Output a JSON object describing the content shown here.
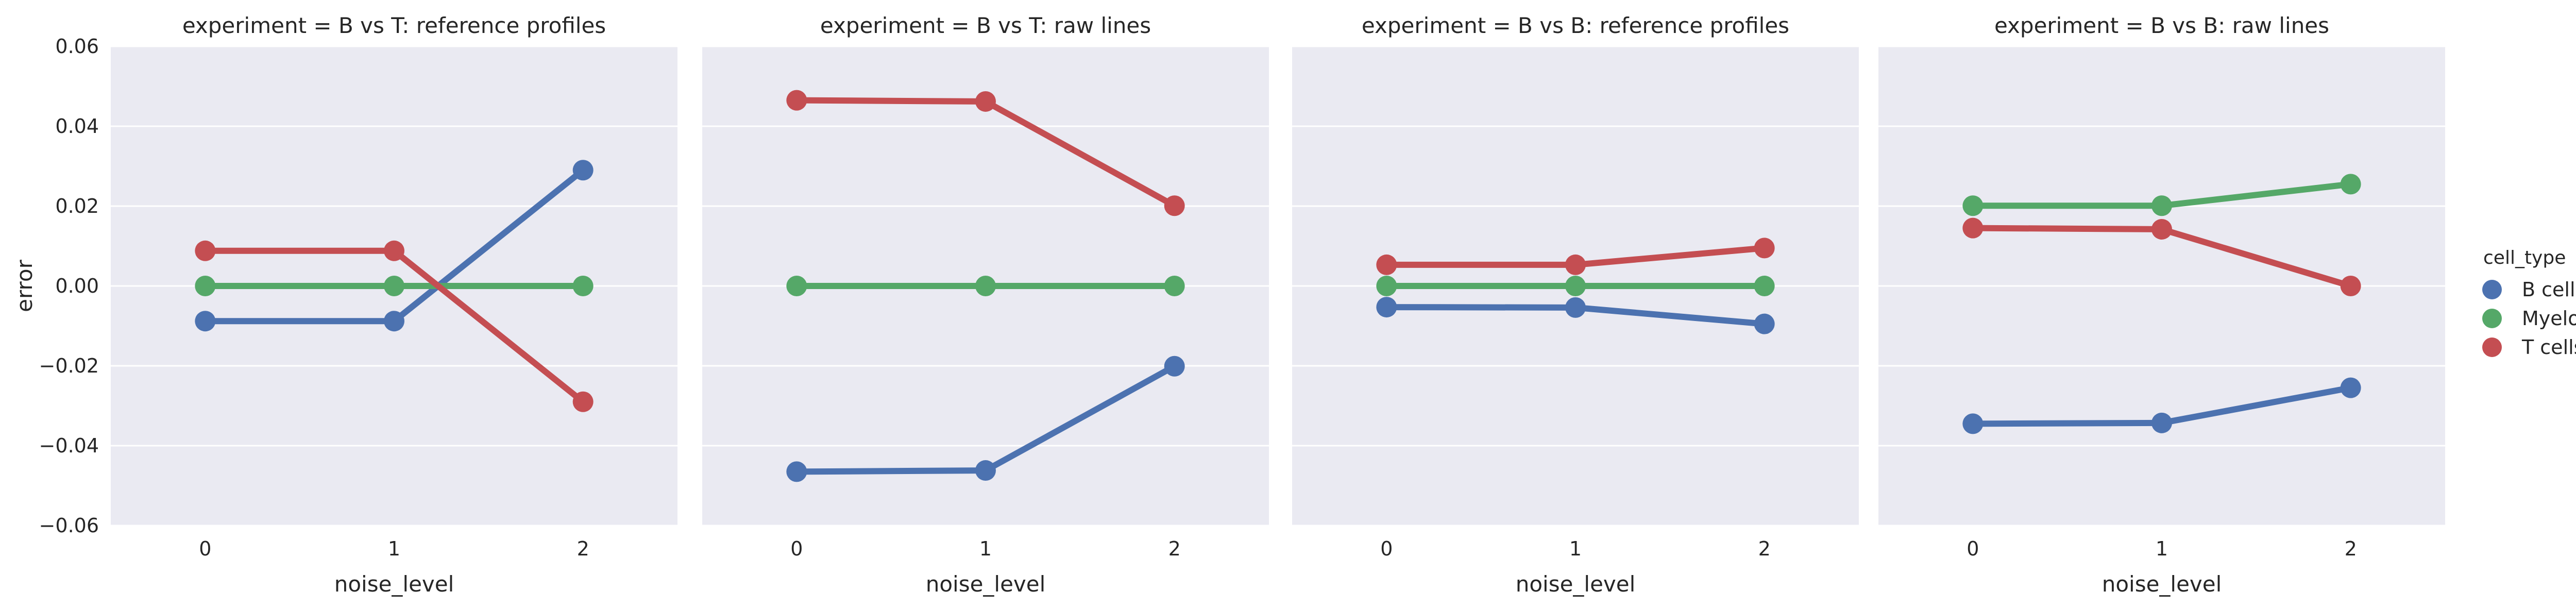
{
  "chart_data": {
    "type": "line",
    "facet_label": "experiment",
    "xlabel": "noise_level",
    "ylabel": "error",
    "x_categories": [
      "0",
      "1",
      "2"
    ],
    "ylim": [
      -0.06,
      0.06
    ],
    "yticks": [
      -0.06,
      -0.04,
      -0.02,
      0.0,
      0.02,
      0.04,
      0.06
    ],
    "ytick_labels": [
      "−0.06",
      "−0.04",
      "−0.02",
      "0.00",
      "0.02",
      "0.04",
      "0.06"
    ],
    "grid": true,
    "legend": {
      "title": "cell_type",
      "placement": "right",
      "entries": [
        {
          "name": "B cells",
          "color": "#4c72b0"
        },
        {
          "name": "Myeloblasts",
          "color": "#55a868"
        },
        {
          "name": "T cells",
          "color": "#c44e52"
        }
      ]
    },
    "panels": [
      {
        "title": "experiment = B vs T: reference profiles",
        "series": [
          {
            "name": "B cells",
            "values": [
              -0.0088,
              -0.0088,
              0.029
            ]
          },
          {
            "name": "Myeloblasts",
            "values": [
              0.0,
              0.0,
              0.0
            ]
          },
          {
            "name": "T cells",
            "values": [
              0.0088,
              0.0088,
              -0.029
            ]
          }
        ]
      },
      {
        "title": "experiment = B vs T: raw lines",
        "series": [
          {
            "name": "B cells",
            "values": [
              -0.0465,
              -0.0462,
              -0.0201
            ]
          },
          {
            "name": "Myeloblasts",
            "values": [
              0.0,
              0.0,
              0.0
            ]
          },
          {
            "name": "T cells",
            "values": [
              0.0465,
              0.0462,
              0.0201
            ]
          }
        ]
      },
      {
        "title": "experiment = B vs B: reference profiles",
        "series": [
          {
            "name": "B cells",
            "values": [
              -0.0053,
              -0.0054,
              -0.0095
            ]
          },
          {
            "name": "Myeloblasts",
            "values": [
              0.0,
              0.0,
              0.0
            ]
          },
          {
            "name": "T cells",
            "values": [
              0.0053,
              0.0053,
              0.0095
            ]
          }
        ]
      },
      {
        "title": "experiment = B vs B: raw lines",
        "series": [
          {
            "name": "B cells",
            "values": [
              -0.0345,
              -0.0343,
              -0.0255
            ]
          },
          {
            "name": "Myeloblasts",
            "values": [
              0.0201,
              0.0201,
              0.0255
            ]
          },
          {
            "name": "T cells",
            "values": [
              0.0145,
              0.0142,
              0.0
            ]
          }
        ]
      }
    ]
  }
}
